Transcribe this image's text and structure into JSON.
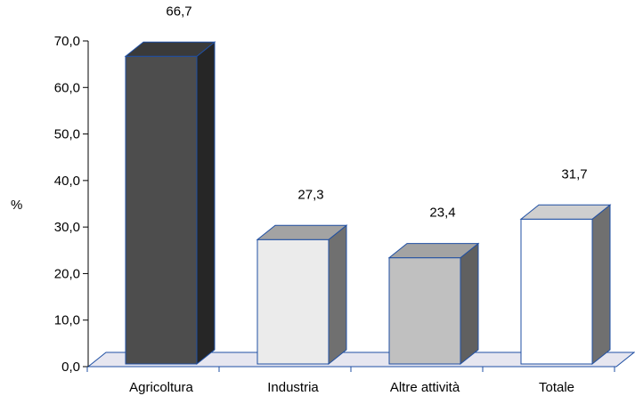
{
  "chart_data": {
    "type": "bar",
    "title": "",
    "xlabel": "",
    "ylabel": "%",
    "ylim": [
      0,
      70
    ],
    "yticks": [
      "0,0",
      "10,0",
      "20,0",
      "30,0",
      "40,0",
      "50,0",
      "60,0",
      "70,0"
    ],
    "categories": [
      "Agricoltura",
      "Industria",
      "Altre attività",
      "Totale"
    ],
    "values": [
      66.7,
      27.3,
      23.4,
      31.7
    ],
    "value_labels": [
      "66,7",
      "27,3",
      "23,4",
      "31,7"
    ],
    "grid": false,
    "legend": "none",
    "style": "3d-bars",
    "colors": {
      "bar_fronts": [
        "#4d4d4d",
        "#ebebeb",
        "#c0c0c0",
        "#ffffff"
      ],
      "bar_sides": [
        "#262626",
        "#707070",
        "#606060",
        "#707070"
      ],
      "bar_tops": [
        "#3a3a3a",
        "#a3a3a3",
        "#a3a3a3",
        "#cfcfcf"
      ],
      "outline": "#1f4fa3",
      "floor": "#e6e6f0",
      "axis": "#000000"
    }
  }
}
